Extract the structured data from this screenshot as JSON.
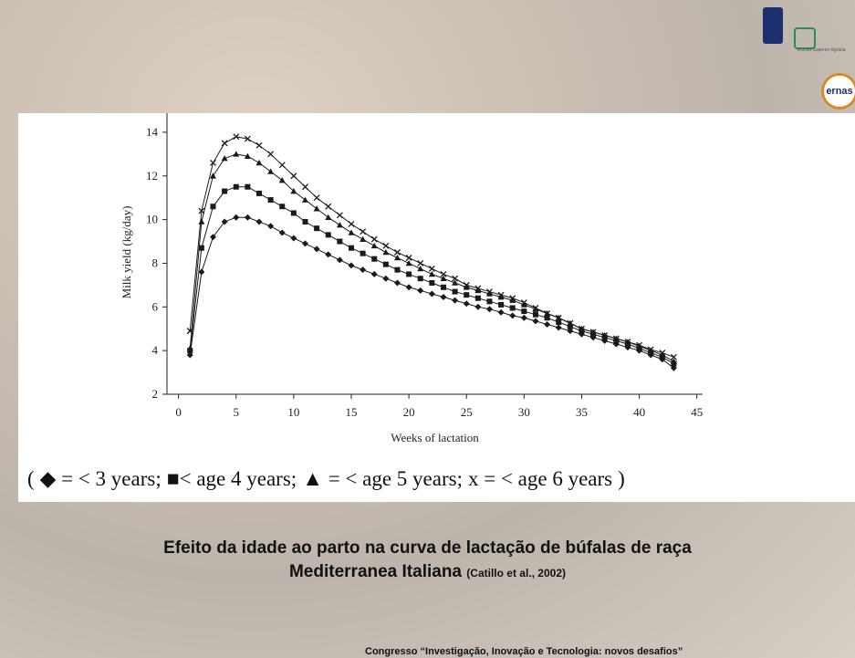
{
  "header": {
    "school": "Escola Superior Agrária",
    "badge": "ernas"
  },
  "chart_data": {
    "type": "line",
    "xlabel": "Weeks of lactation",
    "ylabel": "Milk yield (kg/day)",
    "x": [
      1,
      2,
      3,
      4,
      5,
      6,
      7,
      8,
      9,
      10,
      11,
      12,
      13,
      14,
      15,
      16,
      17,
      18,
      19,
      20,
      21,
      22,
      23,
      24,
      25,
      26,
      27,
      28,
      29,
      30,
      31,
      32,
      33,
      34,
      35,
      36,
      37,
      38,
      39,
      40,
      41,
      42,
      43
    ],
    "xlim": [
      -1,
      45.5
    ],
    "xticks": [
      0,
      5,
      10,
      15,
      20,
      25,
      30,
      35,
      40,
      45
    ],
    "ylim": [
      2,
      15
    ],
    "yticks": [
      2,
      4,
      6,
      8,
      10,
      12,
      14
    ],
    "legend_open": "(",
    "legend_close": ")",
    "series": [
      {
        "name": "◆ = < 3 years;",
        "marker": "diamond",
        "color": "#1a1a1a",
        "values": [
          3.8,
          7.6,
          9.2,
          9.9,
          10.1,
          10.1,
          9.9,
          9.7,
          9.4,
          9.15,
          8.9,
          8.65,
          8.4,
          8.15,
          7.9,
          7.7,
          7.5,
          7.3,
          7.1,
          6.9,
          6.75,
          6.6,
          6.45,
          6.3,
          6.15,
          6.0,
          5.9,
          5.75,
          5.6,
          5.5,
          5.35,
          5.2,
          5.05,
          4.9,
          4.75,
          4.6,
          4.45,
          4.3,
          4.15,
          4.0,
          3.8,
          3.6,
          3.2
        ]
      },
      {
        "name": "■< age  4 years;",
        "marker": "square",
        "color": "#1a1a1a",
        "values": [
          4.0,
          8.7,
          10.6,
          11.3,
          11.5,
          11.5,
          11.2,
          10.9,
          10.6,
          10.3,
          9.9,
          9.6,
          9.3,
          9.0,
          8.7,
          8.45,
          8.2,
          7.95,
          7.7,
          7.5,
          7.3,
          7.1,
          6.9,
          6.7,
          6.55,
          6.4,
          6.25,
          6.1,
          5.95,
          5.8,
          5.65,
          5.5,
          5.3,
          5.1,
          4.9,
          4.75,
          4.6,
          4.45,
          4.3,
          4.1,
          3.9,
          3.7,
          3.4
        ]
      },
      {
        "name": "▲ = < age  5 years;",
        "marker": "triangle",
        "color": "#1a1a1a",
        "values": [
          4.1,
          9.9,
          12.0,
          12.8,
          13.0,
          12.9,
          12.6,
          12.2,
          11.8,
          11.3,
          10.9,
          10.5,
          10.1,
          9.75,
          9.4,
          9.1,
          8.8,
          8.5,
          8.25,
          8.0,
          7.75,
          7.5,
          7.3,
          7.1,
          6.9,
          6.75,
          6.6,
          6.45,
          6.3,
          6.1,
          5.9,
          5.7,
          5.5,
          5.25,
          5.0,
          4.85,
          4.7,
          4.55,
          4.4,
          4.2,
          4.0,
          3.8,
          3.5
        ]
      },
      {
        "name": "x = < age 6 years",
        "marker": "x",
        "color": "#1a1a1a",
        "values": [
          4.9,
          10.4,
          12.6,
          13.5,
          13.8,
          13.7,
          13.4,
          13.0,
          12.5,
          12.0,
          11.5,
          11.0,
          10.6,
          10.2,
          9.8,
          9.45,
          9.1,
          8.8,
          8.5,
          8.25,
          8.0,
          7.75,
          7.5,
          7.3,
          7.0,
          6.85,
          6.7,
          6.55,
          6.4,
          6.2,
          5.95,
          5.7,
          5.5,
          5.25,
          5.0,
          4.85,
          4.7,
          4.55,
          4.4,
          4.25,
          4.05,
          3.9,
          3.7
        ]
      }
    ]
  },
  "caption": {
    "line1": "Efeito da idade ao parto na curva de lactação de búfalas de raça",
    "line2": "Mediterranea Italiana",
    "citation": "(Catillo et al., 2002)"
  },
  "footer": "Congresso “Investigação, Inovação e Tecnologia: novos desafios”"
}
